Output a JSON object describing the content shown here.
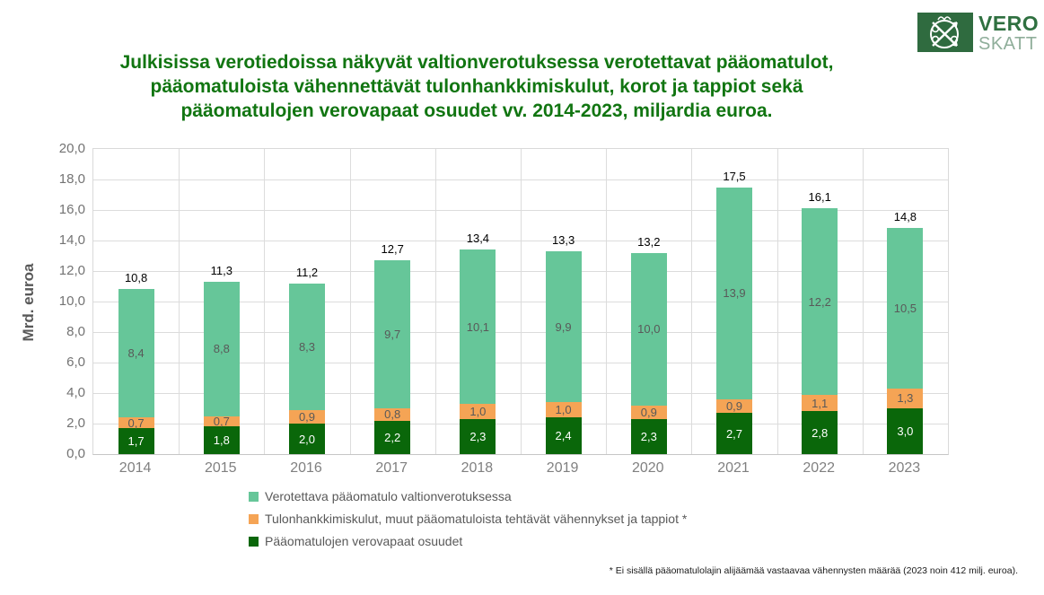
{
  "logo": {
    "name_fi": "VERO",
    "name_sv": "SKATT"
  },
  "title": {
    "line1": "Julkisissa verotiedoissa näkyvät valtionverotuksessa verotettavat pääomatulot,",
    "line2": "pääomatuloista vähennettävät tulonhankkimiskulut, korot ja tappiot sekä",
    "line3": "pääomatulojen verovapaat osuudet vv. 2014-2023, miljardia euroa."
  },
  "footnote": "* Ei sisällä pääomatulolajin alijäämää vastaavaa vähennysten määrää (2023 noin 412 milj. euroa).",
  "chart_data": {
    "type": "bar",
    "stacked": true,
    "title": "Julkisissa verotiedoissa näkyvät valtionverotuksessa verotettavat pääomatulot, pääomatuloista vähennettävät tulonhankkimiskulut, korot ja tappiot sekä pääomatulojen verovapaat osuudet vv. 2014-2023, miljardia euroa.",
    "ylabel": "Mrd. euroa",
    "ylim": [
      0,
      20
    ],
    "ytick_step": 2,
    "grid": true,
    "legend_position": "bottom-left",
    "decimal_separator": ",",
    "categories": [
      "2014",
      "2015",
      "2016",
      "2017",
      "2018",
      "2019",
      "2020",
      "2021",
      "2022",
      "2023"
    ],
    "series": [
      {
        "name": "Pääomatulojen verovapaat osuudet",
        "color": "#0A670A",
        "label_color": "#FFFFFF",
        "values": [
          1.7,
          1.8,
          2.0,
          2.2,
          2.3,
          2.4,
          2.3,
          2.7,
          2.8,
          3.0
        ]
      },
      {
        "name": "Tulonhankkimiskulut, muut pääomatuloista tehtävät vähennykset ja tappiot *",
        "color": "#F5A455",
        "label_color": "#595959",
        "values": [
          0.7,
          0.7,
          0.9,
          0.8,
          1.0,
          1.0,
          0.9,
          0.9,
          1.1,
          1.3
        ]
      },
      {
        "name": "Verotettava pääomatulo valtionverotuksessa",
        "color": "#66C699",
        "label_color": "#595959",
        "values": [
          8.4,
          8.8,
          8.3,
          9.7,
          10.1,
          9.9,
          10.0,
          13.9,
          12.2,
          10.5
        ]
      }
    ],
    "totals": [
      10.8,
      11.3,
      11.2,
      12.7,
      13.4,
      13.3,
      13.2,
      17.5,
      16.1,
      14.8
    ],
    "colors": {
      "title_green": "#117511",
      "grid": "#DCDCDC",
      "axis_text": "#737373",
      "logo_green": "#2F6B3F"
    }
  }
}
